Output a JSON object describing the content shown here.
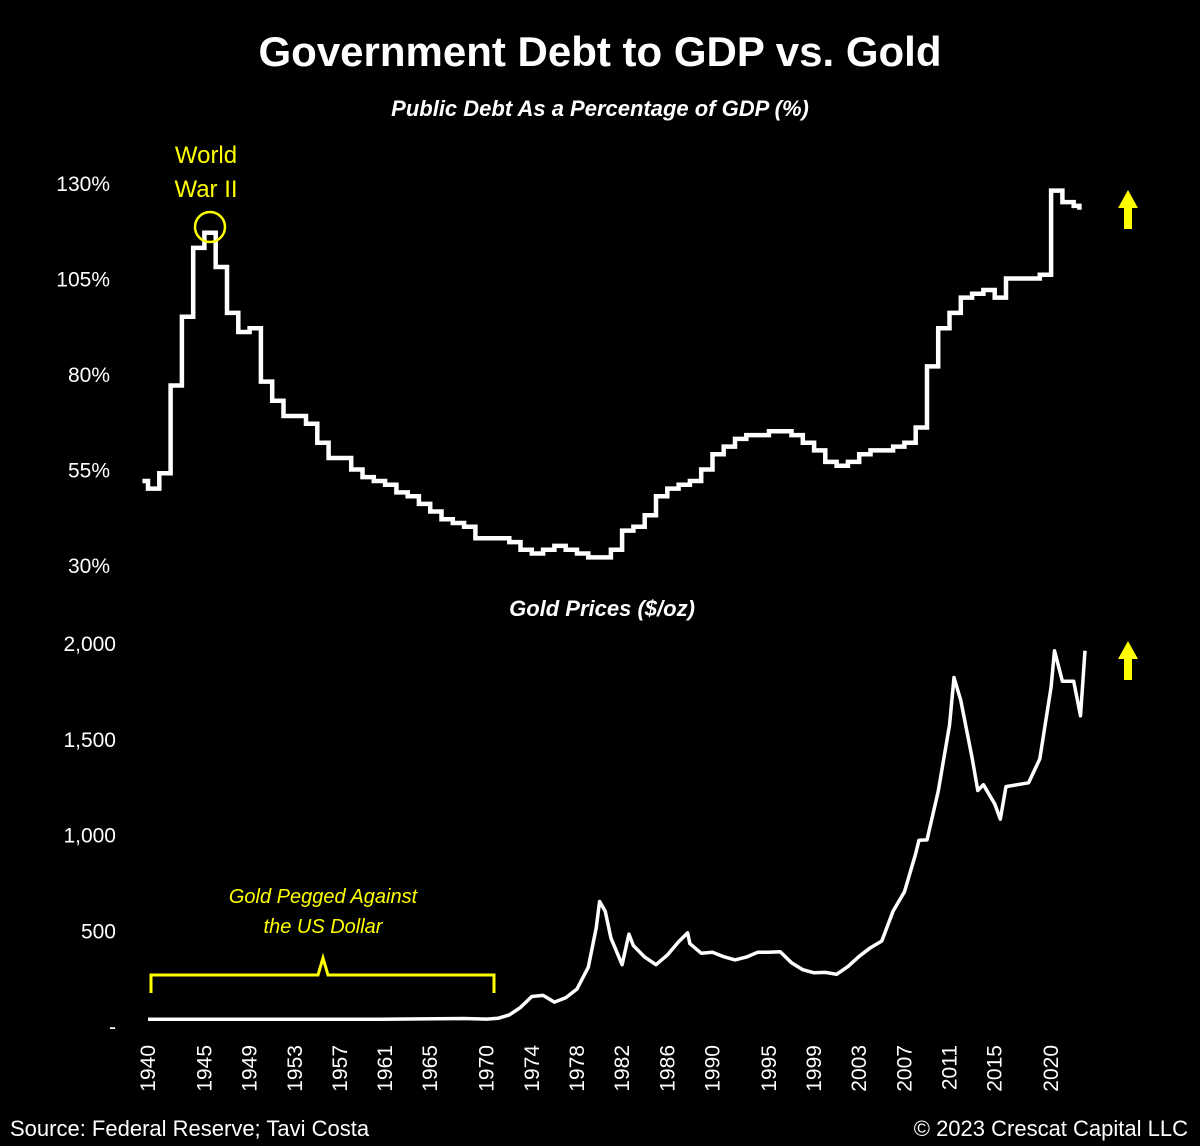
{
  "colors": {
    "background": "#000000",
    "line": "#ffffff",
    "accent": "#ffff00"
  },
  "footer": {
    "source": "Source: Federal Reserve; Tavi Costa",
    "copyright": "© 2023 Crescat Capital LLC"
  },
  "chart_data": [
    {
      "type": "line",
      "title": "Government Debt to GDP vs. Gold",
      "subtitle": "Public Debt As a Percentage of GDP (%)",
      "ylim": [
        30,
        130
      ],
      "yticks": [
        30,
        55,
        80,
        105,
        130
      ],
      "ytick_labels": [
        "30%",
        "55%",
        "80%",
        "105%",
        "130%"
      ],
      "step": true,
      "x": [
        1939.5,
        1940,
        1941,
        1942,
        1943,
        1944,
        1945,
        1946,
        1947,
        1948,
        1949,
        1950,
        1951,
        1952,
        1953,
        1954,
        1955,
        1956,
        1957,
        1958,
        1959,
        1960,
        1961,
        1962,
        1963,
        1964,
        1965,
        1966,
        1967,
        1968,
        1969,
        1970,
        1971,
        1972,
        1973,
        1974,
        1975,
        1976,
        1977,
        1978,
        1979,
        1980,
        1981,
        1982,
        1983,
        1984,
        1985,
        1986,
        1987,
        1988,
        1989,
        1990,
        1991,
        1992,
        1993,
        1994,
        1995,
        1996,
        1997,
        1998,
        1999,
        2000,
        2001,
        2002,
        2003,
        2004,
        2005,
        2006,
        2007,
        2008,
        2009,
        2010,
        2011,
        2012,
        2013,
        2014,
        2015,
        2016,
        2017,
        2018,
        2019,
        2020,
        2021,
        2022,
        2022.5
      ],
      "values": [
        52,
        50,
        54,
        77,
        95,
        113,
        117,
        108,
        96,
        91,
        92,
        78,
        73,
        69,
        69,
        67,
        62,
        58,
        58,
        55,
        53,
        52,
        51,
        49,
        48,
        46,
        44,
        42,
        41,
        40,
        37,
        37,
        37,
        36,
        34,
        33,
        34,
        35,
        34,
        33,
        32,
        32,
        34,
        39,
        40,
        43,
        48,
        50,
        51,
        52,
        55,
        59,
        61,
        63,
        64,
        64,
        65,
        65,
        64,
        62,
        60,
        57,
        56,
        57,
        59,
        60,
        60,
        61,
        62,
        66,
        82,
        92,
        96,
        100,
        101,
        102,
        100,
        105,
        105,
        105,
        106,
        128,
        125,
        124,
        123
      ],
      "annotations": [
        {
          "text_lines": [
            "World",
            "War II"
          ],
          "x": 1946,
          "y": 117
        }
      ],
      "trend_arrow": "up"
    },
    {
      "type": "line",
      "title": "Gold Prices ($/oz)",
      "ylim": [
        0,
        2000
      ],
      "yticks": [
        0,
        500,
        1000,
        1500,
        2000
      ],
      "ytick_labels": [
        "-",
        "500",
        "1,000",
        "1,500",
        "2,000"
      ],
      "x": [
        1940,
        1950,
        1960,
        1968,
        1970,
        1971,
        1972,
        1973,
        1974,
        1975,
        1976,
        1977,
        1978,
        1979,
        1979.7,
        1980,
        1980.5,
        1981,
        1982,
        1982.6,
        1983,
        1984,
        1985,
        1986,
        1987,
        1987.8,
        1988,
        1989,
        1990,
        1991,
        1992,
        1993,
        1994,
        1995,
        1996,
        1997,
        1998,
        1999,
        2000,
        2001,
        2002,
        2003,
        2004,
        2005,
        2006,
        2006.8,
        2007,
        2008,
        2008.3,
        2009,
        2010,
        2011,
        2011.4,
        2012,
        2013,
        2013.5,
        2014,
        2015,
        2015.5,
        2016,
        2017,
        2018,
        2019,
        2020,
        2020.3,
        2021,
        2022,
        2022.6,
        2023
      ],
      "values": [
        35,
        35,
        35,
        39,
        36,
        40,
        58,
        97,
        154,
        160,
        125,
        148,
        193,
        307,
        512,
        650,
        600,
        460,
        320,
        480,
        420,
        360,
        320,
        370,
        440,
        486,
        430,
        380,
        385,
        362,
        345,
        360,
        385,
        385,
        388,
        330,
        294,
        278,
        280,
        270,
        310,
        364,
        409,
        444,
        600,
        680,
        700,
        900,
        970,
        972,
        1225,
        1570,
        1820,
        1700,
        1400,
        1230,
        1260,
        1160,
        1080,
        1250,
        1260,
        1270,
        1395,
        1770,
        1960,
        1800,
        1800,
        1620,
        1960
      ],
      "annotations": [
        {
          "text_lines": [
            "Gold Pegged Against",
            "the US Dollar"
          ],
          "x_range": [
            1940,
            1971
          ]
        }
      ],
      "trend_arrow": "up"
    }
  ],
  "x_axis": {
    "ticks": [
      1940,
      1945,
      1949,
      1953,
      1957,
      1961,
      1965,
      1970,
      1974,
      1978,
      1982,
      1986,
      1990,
      1995,
      1999,
      2003,
      2007,
      2011,
      2015,
      2020
    ],
    "tick_labels": [
      "1940",
      "1945",
      "1949",
      "1953",
      "1957",
      "1961",
      "1965",
      "1970",
      "1974",
      "1978",
      "1982",
      "1986",
      "1990",
      "1995",
      "1999",
      "2003",
      "2007",
      "2011",
      "2015",
      "2020"
    ]
  }
}
